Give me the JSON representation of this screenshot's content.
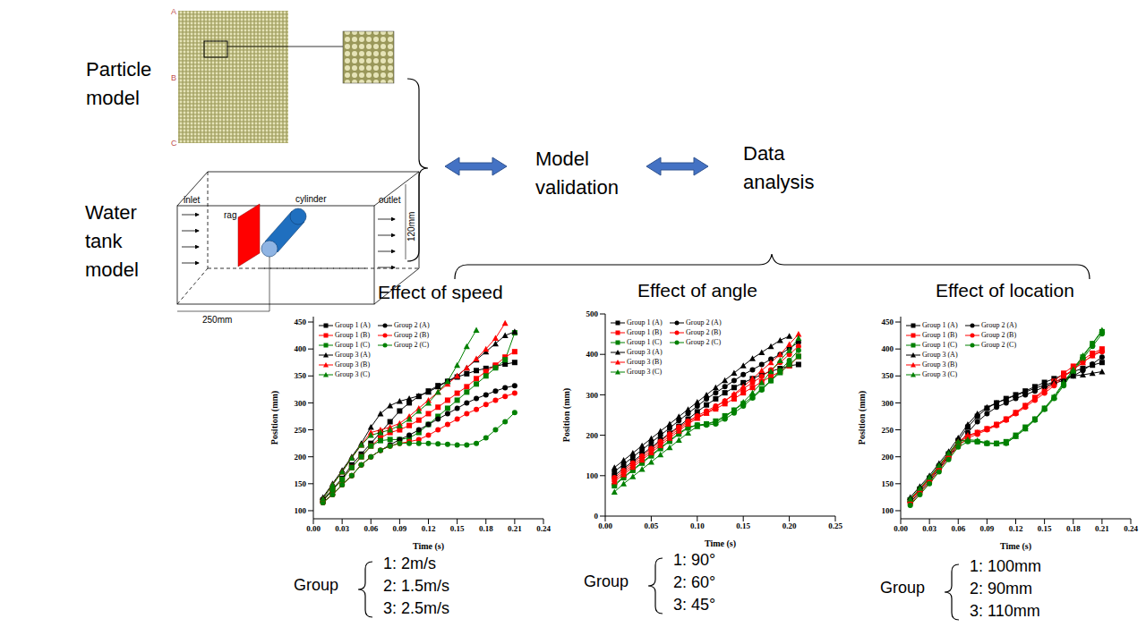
{
  "labels": {
    "particle_model": "Particle model",
    "particle_edges": [
      "A",
      "B",
      "C"
    ],
    "water_tank_model": "Water tank model",
    "tank": {
      "inlet": "inlet",
      "outlet": "outlet",
      "rag": "rag",
      "cylinder": "cylinder",
      "height": "120mm",
      "length": "250mm"
    },
    "model_validation": "Model validation",
    "data_analysis": "Data analysis"
  },
  "group_keys": [
    {
      "label": "Group",
      "items": [
        "1: 2m/s",
        "2: 1.5m/s",
        "3: 2.5m/s"
      ]
    },
    {
      "label": "Group",
      "items": [
        "1: 90°",
        "2: 60°",
        "3: 45°"
      ]
    },
    {
      "label": "Group",
      "items": [
        "1: 100mm",
        "2: 90mm",
        "3: 110mm"
      ]
    }
  ],
  "chart_data": [
    {
      "type": "line",
      "title": "Effect of speed",
      "x_label": "Time (s)",
      "y_label": "Position (mm)",
      "x": [
        0.01,
        0.02,
        0.03,
        0.04,
        0.05,
        0.06,
        0.07,
        0.08,
        0.09,
        0.1,
        0.11,
        0.12,
        0.13,
        0.14,
        0.15,
        0.16,
        0.17,
        0.18,
        0.19,
        0.2,
        0.21
      ],
      "xlim": [
        0,
        0.24
      ],
      "xticks": [
        {
          "value": 0,
          "label": "0.00"
        },
        0.03,
        0.06,
        0.09,
        0.12,
        0.15,
        0.18,
        0.21,
        0.24
      ],
      "ylim": [
        85,
        460
      ],
      "yticks": [
        100,
        150,
        200,
        250,
        300,
        350,
        400,
        450
      ],
      "legend": "top-left",
      "series": [
        {
          "name": "Group 1 (A)",
          "color": "#000000",
          "marker": "square",
          "values": [
            120,
            140,
            160,
            185,
            205,
            225,
            245,
            265,
            285,
            300,
            312,
            322,
            332,
            340,
            348,
            354,
            360,
            364,
            368,
            372,
            375
          ]
        },
        {
          "name": "Group 1 (B)",
          "color": "#ff0000",
          "marker": "square",
          "values": [
            118,
            138,
            158,
            180,
            200,
            220,
            235,
            245,
            250,
            258,
            268,
            280,
            292,
            305,
            318,
            330,
            345,
            358,
            370,
            385,
            395
          ]
        },
        {
          "name": "Group 1 (C)",
          "color": "#008000",
          "marker": "square",
          "values": [
            118,
            138,
            158,
            180,
            200,
            220,
            230,
            232,
            232,
            235,
            245,
            260,
            275,
            290,
            305,
            320,
            335,
            350,
            365,
            380,
            430
          ]
        },
        {
          "name": "Group 2 (A)",
          "color": "#000000",
          "marker": "circle",
          "values": [
            115,
            130,
            148,
            165,
            185,
            200,
            212,
            222,
            232,
            240,
            250,
            260,
            270,
            280,
            290,
            300,
            308,
            315,
            322,
            328,
            332
          ]
        },
        {
          "name": "Group 2 (B)",
          "color": "#ff0000",
          "marker": "circle",
          "values": [
            115,
            130,
            148,
            165,
            185,
            200,
            212,
            220,
            225,
            228,
            232,
            240,
            250,
            260,
            270,
            280,
            288,
            297,
            305,
            312,
            318
          ]
        },
        {
          "name": "Group 2 (C)",
          "color": "#008000",
          "marker": "circle",
          "values": [
            115,
            130,
            148,
            165,
            185,
            200,
            212,
            220,
            225,
            225,
            225,
            225,
            224,
            223,
            222,
            222,
            225,
            235,
            250,
            265,
            282
          ]
        },
        {
          "name": "Group 3 (A)",
          "color": "#000000",
          "marker": "triangle",
          "values": [
            125,
            150,
            175,
            200,
            225,
            255,
            280,
            295,
            303,
            308,
            313,
            320,
            330,
            340,
            350,
            365,
            380,
            395,
            410,
            425,
            432
          ]
        },
        {
          "name": "Group 3 (B)",
          "color": "#ff0000",
          "marker": "triangle",
          "values": [
            122,
            148,
            172,
            198,
            222,
            245,
            250,
            255,
            262,
            275,
            290,
            305,
            320,
            335,
            350,
            365,
            382,
            400,
            420,
            448,
            null
          ]
        },
        {
          "name": "Group 3 (C)",
          "color": "#008000",
          "marker": "triangle",
          "values": [
            122,
            148,
            172,
            198,
            222,
            240,
            245,
            250,
            258,
            270,
            285,
            300,
            320,
            340,
            370,
            405,
            435,
            null,
            null,
            null,
            null
          ]
        }
      ]
    },
    {
      "type": "line",
      "title": "Effect of angle",
      "x_label": "Time (s)",
      "y_label": "Position (mm)",
      "x": [
        0.01,
        0.02,
        0.03,
        0.04,
        0.05,
        0.06,
        0.07,
        0.08,
        0.09,
        0.1,
        0.11,
        0.12,
        0.13,
        0.14,
        0.15,
        0.16,
        0.17,
        0.18,
        0.19,
        0.2,
        0.21
      ],
      "xlim": [
        0,
        0.25
      ],
      "xticks": [
        {
          "value": 0,
          "label": "0.00"
        },
        0.05,
        {
          "value": 0.1,
          "label": "0.10"
        },
        0.15,
        {
          "value": 0.2,
          "label": "0.20"
        },
        0.25
      ],
      "ylim": [
        0,
        500
      ],
      "yticks": [
        0,
        100,
        200,
        300,
        400,
        500
      ],
      "legend": "top-left",
      "series": [
        {
          "name": "Group 1 (A)",
          "color": "#000000",
          "marker": "square",
          "values": [
            100,
            118,
            135,
            153,
            170,
            188,
            205,
            222,
            240,
            258,
            275,
            290,
            305,
            318,
            330,
            340,
            350,
            358,
            365,
            372,
            375
          ]
        },
        {
          "name": "Group 1 (B)",
          "color": "#ff0000",
          "marker": "square",
          "values": [
            90,
            108,
            126,
            144,
            162,
            180,
            198,
            216,
            232,
            245,
            255,
            265,
            278,
            290,
            305,
            318,
            332,
            345,
            358,
            372,
            395
          ]
        },
        {
          "name": "Group 1 (C)",
          "color": "#008000",
          "marker": "square",
          "values": [
            75,
            95,
            113,
            131,
            149,
            167,
            185,
            203,
            218,
            225,
            228,
            235,
            248,
            262,
            278,
            295,
            315,
            335,
            355,
            375,
            395
          ]
        },
        {
          "name": "Group 2 (A)",
          "color": "#000000",
          "marker": "circle",
          "values": [
            110,
            128,
            146,
            164,
            182,
            200,
            218,
            236,
            254,
            272,
            290,
            305,
            320,
            335,
            350,
            362,
            375,
            388,
            400,
            415,
            430
          ]
        },
        {
          "name": "Group 2 (B)",
          "color": "#ff0000",
          "marker": "circle",
          "values": [
            95,
            113,
            131,
            149,
            167,
            185,
            203,
            220,
            235,
            248,
            260,
            272,
            285,
            300,
            315,
            330,
            345,
            362,
            380,
            400,
            420
          ]
        },
        {
          "name": "Group 2 (C)",
          "color": "#008000",
          "marker": "circle",
          "values": [
            78,
            97,
            115,
            133,
            151,
            169,
            187,
            205,
            220,
            225,
            225,
            228,
            240,
            255,
            272,
            292,
            312,
            335,
            360,
            385,
            410
          ]
        },
        {
          "name": "Group 3 (A)",
          "color": "#000000",
          "marker": "triangle",
          "values": [
            120,
            138,
            156,
            174,
            192,
            210,
            228,
            246,
            264,
            282,
            300,
            318,
            336,
            354,
            372,
            390,
            405,
            420,
            435,
            445,
            null
          ]
        },
        {
          "name": "Group 3 (B)",
          "color": "#ff0000",
          "marker": "triangle",
          "values": [
            85,
            103,
            121,
            139,
            157,
            175,
            193,
            211,
            228,
            242,
            255,
            270,
            285,
            302,
            320,
            340,
            360,
            380,
            400,
            425,
            450
          ]
        },
        {
          "name": "Group 3 (C)",
          "color": "#008000",
          "marker": "triangle",
          "values": [
            60,
            80,
            98,
            116,
            134,
            152,
            170,
            188,
            206,
            222,
            228,
            232,
            245,
            262,
            282,
            305,
            330,
            358,
            385,
            410,
            440
          ]
        }
      ]
    },
    {
      "type": "line",
      "title": "Effect of location",
      "x_label": "Time (s)",
      "y_label": "Position (mm)",
      "x": [
        0.01,
        0.02,
        0.03,
        0.04,
        0.05,
        0.06,
        0.07,
        0.08,
        0.09,
        0.1,
        0.11,
        0.12,
        0.13,
        0.14,
        0.15,
        0.16,
        0.17,
        0.18,
        0.19,
        0.2,
        0.21
      ],
      "xlim": [
        0,
        0.24
      ],
      "xticks": [
        {
          "value": 0,
          "label": "0.00"
        },
        0.03,
        0.06,
        0.09,
        0.12,
        0.15,
        0.18,
        0.21,
        0.24
      ],
      "ylim": [
        85,
        460
      ],
      "yticks": [
        100,
        150,
        200,
        250,
        300,
        350,
        400,
        450
      ],
      "legend": "top-left",
      "series": [
        {
          "name": "Group 1 (A)",
          "color": "#000000",
          "marker": "square",
          "values": [
            120,
            140,
            160,
            182,
            205,
            230,
            255,
            275,
            290,
            300,
            308,
            315,
            322,
            330,
            338,
            345,
            352,
            358,
            364,
            370,
            375
          ]
        },
        {
          "name": "Group 1 (B)",
          "color": "#ff0000",
          "marker": "square",
          "values": [
            118,
            138,
            158,
            180,
            202,
            225,
            238,
            245,
            252,
            260,
            270,
            282,
            295,
            310,
            325,
            340,
            355,
            368,
            380,
            392,
            400
          ]
        },
        {
          "name": "Group 1 (C)",
          "color": "#008000",
          "marker": "square",
          "values": [
            120,
            140,
            160,
            182,
            205,
            225,
            230,
            228,
            225,
            225,
            228,
            240,
            255,
            270,
            290,
            310,
            335,
            360,
            385,
            410,
            432
          ]
        },
        {
          "name": "Group 2 (A)",
          "color": "#000000",
          "marker": "circle",
          "values": [
            115,
            135,
            155,
            178,
            200,
            222,
            245,
            265,
            280,
            292,
            300,
            308,
            315,
            322,
            330,
            336,
            342,
            350,
            360,
            372,
            385
          ]
        },
        {
          "name": "Group 2 (B)",
          "color": "#ff0000",
          "marker": "circle",
          "values": [
            112,
            132,
            152,
            175,
            198,
            220,
            235,
            242,
            250,
            258,
            268,
            280,
            292,
            305,
            318,
            332,
            348,
            362,
            375,
            388,
            395
          ]
        },
        {
          "name": "Group 2 (C)",
          "color": "#008000",
          "marker": "circle",
          "values": [
            110,
            130,
            150,
            172,
            195,
            218,
            228,
            228,
            225,
            224,
            225,
            238,
            252,
            268,
            288,
            308,
            332,
            358,
            382,
            405,
            428
          ]
        },
        {
          "name": "Group 3 (A)",
          "color": "#000000",
          "marker": "triangle",
          "values": [
            125,
            145,
            165,
            188,
            210,
            235,
            260,
            280,
            292,
            300,
            307,
            314,
            320,
            327,
            333,
            339,
            345,
            350,
            352,
            355,
            358
          ]
        },
        {
          "name": "Group 3 (B)",
          "color": "#ff0000",
          "marker": "triangle",
          "values": [
            120,
            140,
            160,
            182,
            205,
            228,
            240,
            245,
            252,
            260,
            270,
            282,
            295,
            308,
            322,
            336,
            350,
            362,
            375,
            388,
            398
          ]
        },
        {
          "name": "Group 3 (C)",
          "color": "#008000",
          "marker": "triangle",
          "values": [
            122,
            142,
            162,
            184,
            207,
            228,
            232,
            230,
            226,
            225,
            226,
            238,
            252,
            270,
            290,
            312,
            338,
            362,
            388,
            410,
            435
          ]
        }
      ]
    }
  ]
}
